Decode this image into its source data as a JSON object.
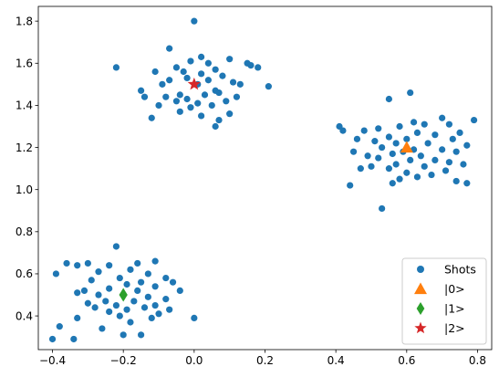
{
  "chart_data": {
    "type": "scatter",
    "title": "",
    "xlabel": "",
    "ylabel": "",
    "xlim": [
      -0.44,
      0.84
    ],
    "ylim": [
      0.24,
      1.87
    ],
    "xticks": [
      -0.4,
      -0.2,
      0.0,
      0.2,
      0.4,
      0.6,
      0.8
    ],
    "xtick_labels": [
      "−0.4",
      "−0.2",
      "0.0",
      "0.2",
      "0.4",
      "0.6",
      "0.8"
    ],
    "yticks": [
      0.4,
      0.6,
      0.8,
      1.0,
      1.2,
      1.4,
      1.6,
      1.8
    ],
    "ytick_labels": [
      "0.4",
      "0.6",
      "0.8",
      "1.0",
      "1.2",
      "1.4",
      "1.6",
      "1.8"
    ],
    "grid": false,
    "legend_position": "lower-right",
    "series": [
      {
        "name": "Shots",
        "marker": "circle",
        "color": "#1f77b4",
        "points": [
          [
            0.0,
            1.8
          ],
          [
            -0.07,
            1.67
          ],
          [
            0.02,
            1.63
          ],
          [
            0.1,
            1.62
          ],
          [
            -0.01,
            1.61
          ],
          [
            0.04,
            1.6
          ],
          [
            0.15,
            1.6
          ],
          [
            0.16,
            1.59
          ],
          [
            -0.22,
            1.58
          ],
          [
            -0.05,
            1.58
          ],
          [
            0.18,
            1.58
          ],
          [
            0.06,
            1.57
          ],
          [
            -0.03,
            1.56
          ],
          [
            -0.11,
            1.56
          ],
          [
            0.02,
            1.55
          ],
          [
            0.08,
            1.54
          ],
          [
            -0.02,
            1.53
          ],
          [
            0.04,
            1.52
          ],
          [
            -0.07,
            1.52
          ],
          [
            0.11,
            1.51
          ],
          [
            0.01,
            1.5
          ],
          [
            0.13,
            1.5
          ],
          [
            -0.09,
            1.5
          ],
          [
            0.21,
            1.49
          ],
          [
            -0.15,
            1.47
          ],
          [
            0.06,
            1.47
          ],
          [
            0.07,
            1.46
          ],
          [
            -0.04,
            1.45
          ],
          [
            0.03,
            1.45
          ],
          [
            -0.14,
            1.44
          ],
          [
            -0.08,
            1.44
          ],
          [
            0.12,
            1.44
          ],
          [
            -0.02,
            1.43
          ],
          [
            -0.05,
            1.42
          ],
          [
            0.09,
            1.42
          ],
          [
            0.01,
            1.41
          ],
          [
            -0.1,
            1.4
          ],
          [
            0.05,
            1.4
          ],
          [
            -0.01,
            1.39
          ],
          [
            -0.04,
            1.37
          ],
          [
            0.1,
            1.36
          ],
          [
            0.02,
            1.35
          ],
          [
            -0.12,
            1.34
          ],
          [
            0.07,
            1.33
          ],
          [
            0.06,
            1.3
          ],
          [
            0.61,
            1.46
          ],
          [
            0.55,
            1.43
          ],
          [
            0.7,
            1.34
          ],
          [
            0.79,
            1.33
          ],
          [
            0.62,
            1.32
          ],
          [
            0.72,
            1.31
          ],
          [
            0.65,
            1.31
          ],
          [
            0.41,
            1.3
          ],
          [
            0.58,
            1.3
          ],
          [
            0.52,
            1.29
          ],
          [
            0.48,
            1.28
          ],
          [
            0.42,
            1.28
          ],
          [
            0.63,
            1.27
          ],
          [
            0.75,
            1.27
          ],
          [
            0.68,
            1.26
          ],
          [
            0.55,
            1.25
          ],
          [
            0.6,
            1.24
          ],
          [
            0.73,
            1.24
          ],
          [
            0.46,
            1.24
          ],
          [
            0.51,
            1.23
          ],
          [
            0.57,
            1.22
          ],
          [
            0.66,
            1.22
          ],
          [
            0.77,
            1.21
          ],
          [
            0.53,
            1.2
          ],
          [
            0.62,
            1.19
          ],
          [
            0.7,
            1.19
          ],
          [
            0.45,
            1.18
          ],
          [
            0.59,
            1.18
          ],
          [
            0.74,
            1.18
          ],
          [
            0.56,
            1.17
          ],
          [
            0.49,
            1.16
          ],
          [
            0.64,
            1.16
          ],
          [
            0.52,
            1.15
          ],
          [
            0.68,
            1.14
          ],
          [
            0.61,
            1.14
          ],
          [
            0.72,
            1.13
          ],
          [
            0.57,
            1.12
          ],
          [
            0.76,
            1.12
          ],
          [
            0.5,
            1.11
          ],
          [
            0.65,
            1.11
          ],
          [
            0.47,
            1.1
          ],
          [
            0.55,
            1.1
          ],
          [
            0.71,
            1.09
          ],
          [
            0.6,
            1.08
          ],
          [
            0.67,
            1.07
          ],
          [
            0.63,
            1.06
          ],
          [
            0.58,
            1.05
          ],
          [
            0.74,
            1.04
          ],
          [
            0.56,
            1.03
          ],
          [
            0.77,
            1.03
          ],
          [
            0.44,
            1.02
          ],
          [
            0.53,
            0.91
          ],
          [
            -0.22,
            0.73
          ],
          [
            -0.36,
            0.65
          ],
          [
            -0.11,
            0.66
          ],
          [
            -0.16,
            0.65
          ],
          [
            -0.3,
            0.65
          ],
          [
            -0.33,
            0.64
          ],
          [
            -0.24,
            0.64
          ],
          [
            -0.39,
            0.6
          ],
          [
            -0.18,
            0.62
          ],
          [
            -0.27,
            0.61
          ],
          [
            -0.13,
            0.6
          ],
          [
            -0.08,
            0.58
          ],
          [
            -0.21,
            0.58
          ],
          [
            -0.29,
            0.57
          ],
          [
            -0.15,
            0.56
          ],
          [
            -0.06,
            0.56
          ],
          [
            -0.19,
            0.55
          ],
          [
            -0.11,
            0.54
          ],
          [
            -0.24,
            0.53
          ],
          [
            -0.31,
            0.52
          ],
          [
            -0.16,
            0.52
          ],
          [
            -0.04,
            0.52
          ],
          [
            -0.33,
            0.51
          ],
          [
            -0.27,
            0.5
          ],
          [
            -0.2,
            0.5
          ],
          [
            -0.13,
            0.49
          ],
          [
            -0.08,
            0.48
          ],
          [
            -0.25,
            0.47
          ],
          [
            -0.17,
            0.47
          ],
          [
            -0.3,
            0.46
          ],
          [
            -0.22,
            0.45
          ],
          [
            -0.11,
            0.45
          ],
          [
            -0.28,
            0.44
          ],
          [
            -0.14,
            0.44
          ],
          [
            -0.19,
            0.43
          ],
          [
            -0.07,
            0.43
          ],
          [
            -0.24,
            0.42
          ],
          [
            -0.1,
            0.41
          ],
          [
            -0.21,
            0.4
          ],
          [
            -0.33,
            0.39
          ],
          [
            -0.12,
            0.39
          ],
          [
            0.0,
            0.39
          ],
          [
            -0.18,
            0.37
          ],
          [
            -0.38,
            0.35
          ],
          [
            -0.26,
            0.34
          ],
          [
            -0.15,
            0.31
          ],
          [
            -0.4,
            0.29
          ],
          [
            -0.34,
            0.29
          ],
          [
            -0.2,
            0.31
          ]
        ]
      },
      {
        "name": "|0>",
        "marker": "triangle",
        "color": "#ff7f0e",
        "points": [
          [
            0.6,
            1.2
          ]
        ]
      },
      {
        "name": "|1>",
        "marker": "diamond",
        "color": "#2ca02c",
        "points": [
          [
            -0.2,
            0.5
          ]
        ]
      },
      {
        "name": "|2>",
        "marker": "star",
        "color": "#d62728",
        "points": [
          [
            0.0,
            1.5
          ]
        ]
      }
    ]
  }
}
